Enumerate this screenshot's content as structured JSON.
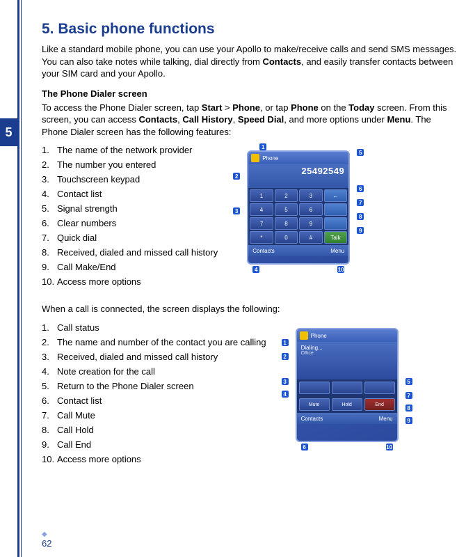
{
  "chapter_number": "5",
  "page_number": "62",
  "section": {
    "number": "5.",
    "title": "Basic phone functions"
  },
  "intro_parts": {
    "p1": "Like a standard mobile phone, you can use your Apollo to make/receive calls and send SMS messages. You can also take notes while talking, dial directly from ",
    "b1": "Contacts",
    "p2": ", and easily transfer contacts between your SIM card and your Apollo."
  },
  "subheading": "The Phone Dialer screen",
  "sub_parts": {
    "p1": "To access the Phone Dialer screen, tap ",
    "b1": "Start",
    "p2": " > ",
    "b2": "Phone",
    "p3": ", or tap ",
    "b3": "Phone",
    "p4": " on the ",
    "b4": "Today",
    "p5": " screen. From this screen, you can access ",
    "b5": "Contacts",
    "p6": ", ",
    "b6": "Call History",
    "p7": ", ",
    "b7": "Speed Dial",
    "p8": ", and more options under ",
    "b8": "Menu",
    "p9": ". The Phone Dialer screen has the following features:"
  },
  "list1": [
    "The name of the network provider",
    "The number you entered",
    "Touchscreen keypad",
    "Contact list",
    "Signal strength",
    "Clear numbers",
    "Quick dial",
    "Received, dialed and missed call history",
    "Call Make/End",
    "Access more options"
  ],
  "midtext": "When a call is connected, the screen displays the following:",
  "list2": [
    "Call status",
    "The name and number of the contact you are calling",
    "Received, dialed and missed call history",
    "Note creation for the call",
    "Return to the Phone Dialer screen",
    "Contact list",
    "Call Mute",
    "Call Hold",
    "Call End",
    "Access more options"
  ],
  "phone1": {
    "display_number": "25492549",
    "callouts": [
      "1",
      "2",
      "3",
      "4",
      "5",
      "6",
      "7",
      "8",
      "9",
      "10"
    ]
  },
  "phone2": {
    "status_label": "Dialing...",
    "callouts": [
      "1",
      "2",
      "3",
      "4",
      "5",
      "6",
      "7",
      "8",
      "9",
      "10"
    ]
  }
}
